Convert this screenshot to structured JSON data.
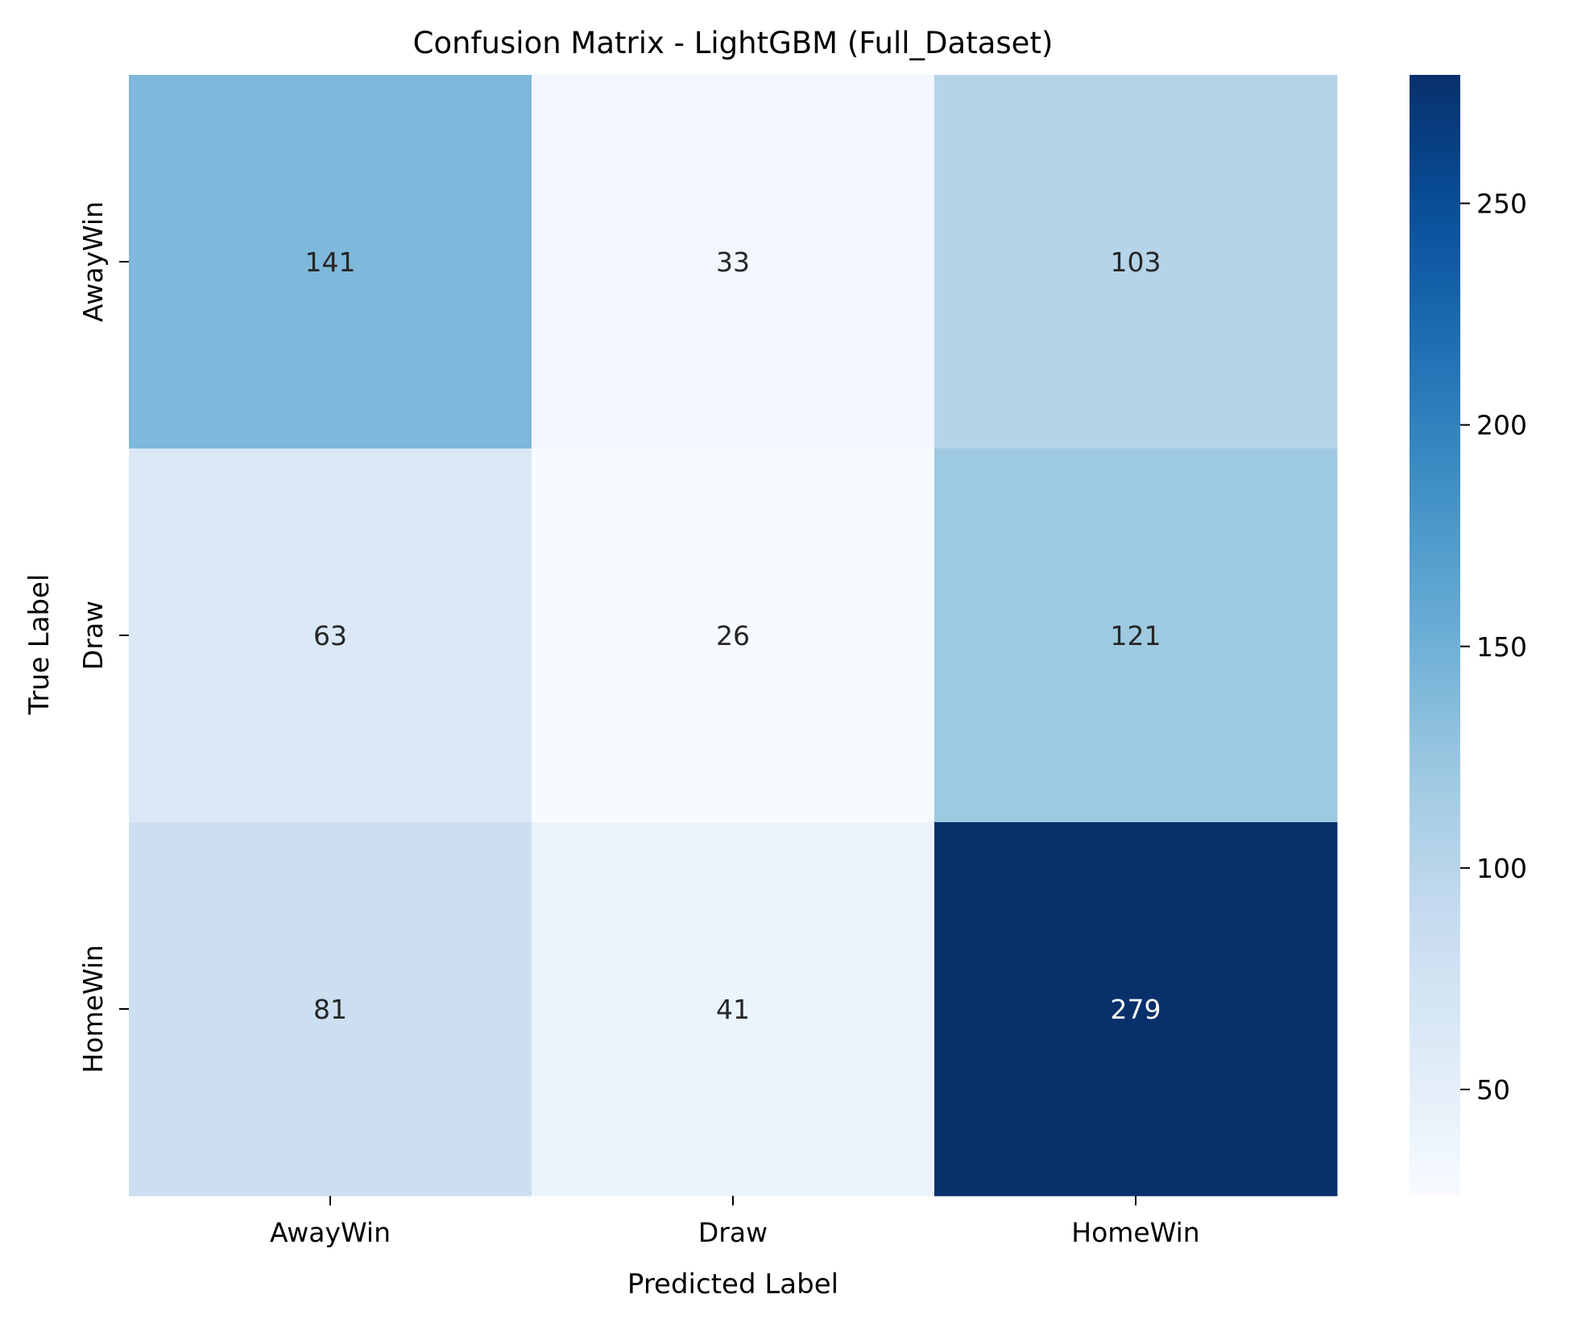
{
  "chart_data": {
    "type": "heatmap",
    "title": "Confusion Matrix - LightGBM (Full_Dataset)",
    "xlabel": "Predicted Label",
    "ylabel": "True Label",
    "x_categories": [
      "AwayWin",
      "Draw",
      "HomeWin"
    ],
    "y_categories": [
      "AwayWin",
      "Draw",
      "HomeWin"
    ],
    "values": [
      [
        141,
        33,
        103
      ],
      [
        63,
        26,
        121
      ],
      [
        81,
        41,
        279
      ]
    ],
    "colorbar": {
      "colormap": "Blues",
      "min": 26,
      "max": 279,
      "ticks": [
        50,
        100,
        150,
        200,
        250
      ]
    },
    "grid": false,
    "colors": {
      "low": "#f7fbff",
      "high": "#08306b",
      "text_dark": "#262626",
      "text_light": "#ffffff"
    }
  }
}
